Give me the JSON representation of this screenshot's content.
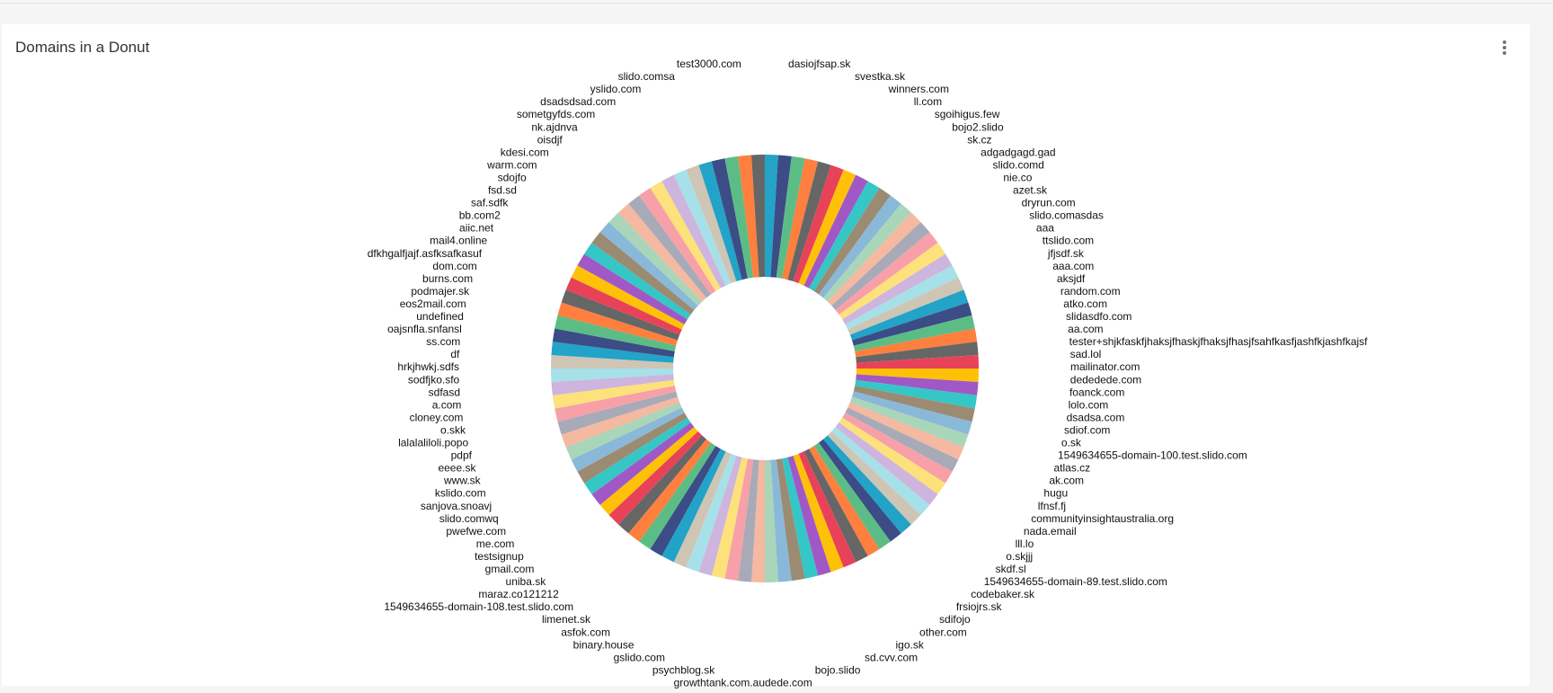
{
  "widget": {
    "title": "Domains in a Donut",
    "menu_icon": "kebab-vertical-icon"
  },
  "chart_data": {
    "type": "pie",
    "donut": true,
    "title": "Domains in a Donut",
    "colors": [
      "#22a3c7",
      "#3b4c86",
      "#5bbd85",
      "#ff7f3f",
      "#666666",
      "#e84258",
      "#ffc107",
      "#a058c6",
      "#35c6c6",
      "#9b8b72",
      "#8ab8d8",
      "#a9d5b8",
      "#f5b8a0",
      "#a8aab8",
      "#f7a0a8",
      "#fde17a",
      "#cdb5de",
      "#a6e0e8",
      "#cfc5b5"
    ],
    "labels": [
      "dasiojfsap.sk",
      "svestka.sk",
      "winners.com",
      "ll.com",
      "sgoihigus.few",
      "bojo2.slido",
      "sk.cz",
      "adgadgagd.gad",
      "slido.comd",
      "nie.co",
      "azet.sk",
      "dryrun.com",
      "slido.comasdas",
      "aaa",
      "ttslido.com",
      "jfjsdf.sk",
      "aaa.com",
      "aksjdf",
      "random.com",
      "atko.com",
      "slidasdfo.com",
      "aa.com",
      "tester+shjkfaskfjhaksjfhaskjfhaksjfhasjfsahfkasfjashfkjashfkajsf",
      "sad.lol",
      "mailinator.com",
      "dededede.com",
      "foanck.com",
      "lolo.com",
      "dsadsa.com",
      "sdiof.com",
      "o.sk",
      "1549634655-domain-100.test.slido.com",
      "atlas.cz",
      "ak.com",
      "hugu",
      "lfnsf.fj",
      "communityinsightaustralia.org",
      "nada.email",
      "lll.lo",
      "o.skjjj",
      "skdf.sl",
      "1549634655-domain-89.test.slido.com",
      "codebaker.sk",
      "frsiojrs.sk",
      "sdifojo",
      "other.com",
      "igo.sk",
      "sd.cvv.com",
      "bojo.slido",
      "dede.com",
      "growthtank.com.au",
      "psychblog.sk",
      "gslido.com",
      "binary.house",
      "asfok.com",
      "limenet.sk",
      "1549634655-domain-108.test.slido.com",
      "maraz.co121212",
      "uniba.sk",
      "gmail.com",
      "testsignup",
      "me.com",
      "pwefwe.com",
      "slido.comwq",
      "sanjova.snoavj",
      "kslido.com",
      "www.sk",
      "eeee.sk",
      "pdpf",
      "lalalaliloli.popo",
      "o.skk",
      "cloney.com",
      "a.com",
      "sdfasd",
      "sodfjko.sfo",
      "hrkjhwkj.sdfs",
      "df",
      "ss.com",
      "oajsnfla.snfansl",
      "undefined",
      "eos2mail.com",
      "podmajer.sk",
      "burns.com",
      "dom.com",
      "dfkhgalfjajf.asfksafkasuf",
      "mail4.online",
      "aiic.net",
      "bb.com2",
      "saf.sdfk",
      "fsd.sd",
      "sdojfo",
      "warm.com",
      "kdesi.com",
      "oisdjf",
      "nk.ajdnva",
      "sometgyfds.com",
      "dsadsdsad.com",
      "yslido.com",
      "slido.comsa",
      "test3000.com"
    ],
    "values": [
      1,
      1,
      1,
      1,
      1,
      1,
      1,
      1,
      1,
      1,
      1,
      1,
      1,
      1,
      1,
      1,
      1,
      1,
      1,
      1,
      1,
      1,
      1,
      1,
      1,
      1,
      1,
      1,
      1,
      1,
      1,
      1,
      1,
      1,
      1,
      1,
      1,
      1,
      1,
      1,
      1,
      1,
      1,
      1,
      1,
      1,
      1,
      1,
      1,
      1,
      1,
      1,
      1,
      1,
      1,
      1,
      1,
      1,
      1,
      1,
      1,
      1,
      1,
      1,
      1,
      1,
      1,
      1,
      1,
      1,
      1,
      1,
      1,
      1,
      1,
      1,
      1,
      1,
      1,
      1,
      1,
      1,
      1,
      1,
      1,
      1,
      1,
      1,
      1,
      1,
      1,
      1,
      1,
      1,
      1,
      1,
      1,
      1,
      1,
      1
    ]
  }
}
